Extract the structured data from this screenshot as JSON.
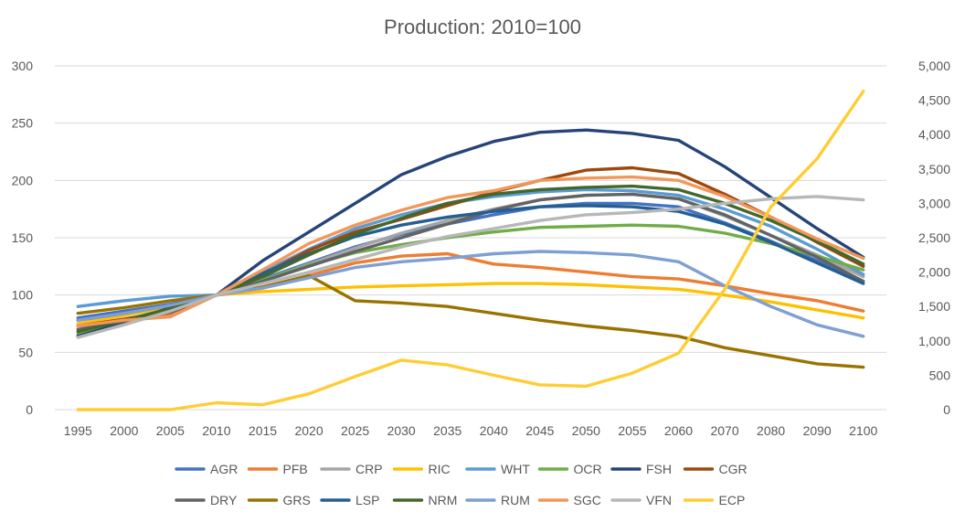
{
  "chart_data": {
    "type": "line",
    "title": "Production: 2010=100",
    "categories": [
      "1995",
      "2000",
      "2005",
      "2010",
      "2015",
      "2020",
      "2025",
      "2030",
      "2035",
      "2040",
      "2045",
      "2050",
      "2055",
      "2060",
      "2070",
      "2080",
      "2090",
      "2100"
    ],
    "y_left": {
      "ticks": [
        0,
        50,
        100,
        150,
        200,
        250,
        300
      ],
      "tick_labels": [
        "0",
        "50",
        "100",
        "150",
        "200",
        "250",
        "300"
      ],
      "range": [
        0,
        300
      ]
    },
    "y_right": {
      "ticks": [
        0,
        500,
        1000,
        1500,
        2000,
        2500,
        3000,
        3500,
        4000,
        4500,
        5000
      ],
      "tick_labels": [
        "0",
        "500",
        "1,000",
        "1,500",
        "2,000",
        "2,500",
        "3,000",
        "3,500",
        "4,000",
        "4,500",
        "5,000"
      ],
      "range": [
        0,
        5000
      ]
    },
    "gridlines": "horizontal",
    "legend_position": "bottom",
    "series": [
      {
        "name": "AGR",
        "color": "#4472C4",
        "axis": "left",
        "values": [
          80,
          86,
          92,
          100,
          114,
          128,
          142,
          153,
          162,
          170,
          177,
          180,
          180,
          177,
          163,
          147,
          130,
          112
        ]
      },
      {
        "name": "PFB",
        "color": "#ED7D31",
        "axis": "left",
        "values": [
          73,
          78,
          83,
          100,
          106,
          117,
          128,
          134,
          136,
          127,
          124,
          120,
          116,
          114,
          108,
          101,
          95,
          86
        ]
      },
      {
        "name": "CRP",
        "color": "#A5A5A5",
        "axis": "left",
        "values": [
          66,
          78,
          88,
          100,
          113,
          127,
          141,
          154,
          165,
          175,
          183,
          187,
          188,
          184,
          169,
          152,
          135,
          116
        ]
      },
      {
        "name": "RIC",
        "color": "#FFC000",
        "axis": "left",
        "values": [
          75,
          82,
          90,
          100,
          103,
          105,
          107,
          108,
          109,
          110,
          110,
          109,
          107,
          105,
          100,
          94,
          87,
          80
        ]
      },
      {
        "name": "WHT",
        "color": "#5B9BD5",
        "axis": "left",
        "values": [
          90,
          95,
          99,
          100,
          120,
          140,
          158,
          170,
          180,
          186,
          190,
          192,
          191,
          187,
          175,
          160,
          140,
          118
        ]
      },
      {
        "name": "OCR",
        "color": "#70AD47",
        "axis": "left",
        "values": [
          65,
          76,
          87,
          100,
          113,
          126,
          137,
          144,
          150,
          155,
          159,
          160,
          161,
          160,
          154,
          145,
          134,
          122
        ]
      },
      {
        "name": "FSH",
        "color": "#264478",
        "axis": "left",
        "values": [
          64,
          76,
          89,
          100,
          130,
          155,
          180,
          205,
          221,
          234,
          242,
          244,
          241,
          235,
          212,
          185,
          158,
          133
        ]
      },
      {
        "name": "CGR",
        "color": "#9E480E",
        "axis": "left",
        "values": [
          73,
          79,
          86,
          100,
          118,
          139,
          155,
          166,
          178,
          190,
          200,
          209,
          211,
          206,
          188,
          168,
          146,
          125
        ]
      },
      {
        "name": "DRY",
        "color": "#636363",
        "axis": "left",
        "values": [
          70,
          77,
          85,
          100,
          112,
          125,
          138,
          150,
          162,
          174,
          183,
          187,
          188,
          184,
          170,
          152,
          133,
          112
        ]
      },
      {
        "name": "GRS",
        "color": "#997300",
        "axis": "left",
        "values": [
          84,
          89,
          95,
          100,
          107,
          117,
          95,
          93,
          90,
          84,
          78,
          73,
          69,
          64,
          54,
          47,
          40,
          37
        ]
      },
      {
        "name": "LSP",
        "color": "#255E91",
        "axis": "left",
        "values": [
          78,
          84,
          91,
          100,
          119,
          136,
          151,
          161,
          168,
          173,
          177,
          178,
          177,
          173,
          162,
          146,
          128,
          110
        ]
      },
      {
        "name": "NRM",
        "color": "#43682B",
        "axis": "left",
        "values": [
          68,
          78,
          88,
          100,
          116,
          135,
          153,
          167,
          180,
          188,
          192,
          194,
          195,
          192,
          180,
          165,
          147,
          127
        ]
      },
      {
        "name": "RUM",
        "color": "#7F9FD3",
        "axis": "left",
        "values": [
          78,
          84,
          91,
          100,
          106,
          115,
          124,
          129,
          132,
          136,
          138,
          137,
          135,
          129,
          108,
          90,
          74,
          64
        ]
      },
      {
        "name": "SGC",
        "color": "#F1975A",
        "axis": "left",
        "values": [
          73,
          78,
          81,
          100,
          122,
          145,
          161,
          174,
          185,
          191,
          200,
          202,
          203,
          200,
          186,
          168,
          149,
          132
        ]
      },
      {
        "name": "VFN",
        "color": "#B7B7B7",
        "axis": "left",
        "values": [
          63,
          74,
          86,
          100,
          110,
          120,
          131,
          142,
          151,
          158,
          165,
          170,
          172,
          175,
          180,
          184,
          186,
          183
        ]
      },
      {
        "name": "ECP",
        "color": "#FFCD33",
        "axis": "right",
        "values": [
          0,
          0,
          0,
          100,
          70,
          230,
          480,
          720,
          650,
          500,
          360,
          340,
          530,
          820,
          1750,
          2950,
          3650,
          4630
        ]
      }
    ]
  }
}
